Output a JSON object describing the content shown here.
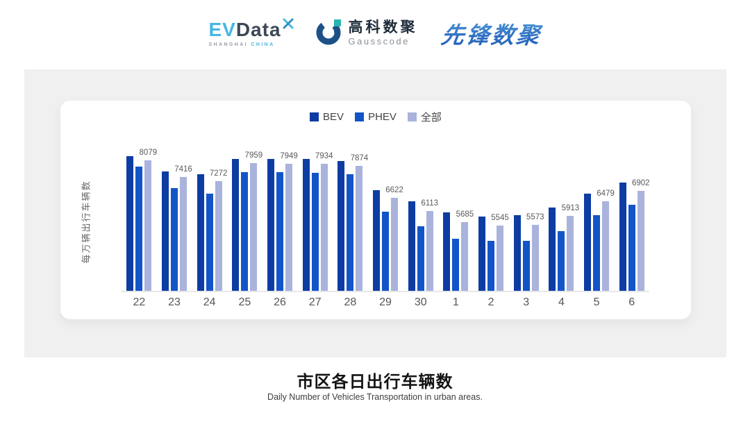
{
  "header": {
    "evdata": {
      "ev": "EV",
      "data": "Data",
      "sub_left": "SHANGHAI",
      "sub_right": "CHINA",
      "accent_color": "#45b7e3",
      "dark_color": "#3c4857"
    },
    "gausscode": {
      "cn": "高科数聚",
      "en": "Gausscode",
      "icon_dark": "#1d5186",
      "icon_teal": "#2bb3b1"
    },
    "xianfeng": {
      "text": "先锋数聚",
      "color": "#2f6fc2"
    }
  },
  "chart_data": {
    "type": "bar",
    "title": "市区各日出行车辆数",
    "subtitle": "Daily Number of Vehicles Transportation in urban areas.",
    "xlabel": "",
    "ylabel": "每万辆出行车辆数",
    "legend_position": "top",
    "grid": false,
    "axis_min": 3000,
    "axis_max": 8400,
    "categories": [
      "22",
      "23",
      "24",
      "25",
      "26",
      "27",
      "28",
      "29",
      "30",
      "1",
      "2",
      "3",
      "4",
      "5",
      "6"
    ],
    "series": [
      {
        "name": "BEV",
        "key": "bev",
        "color": "#0d3ca3",
        "values": [
          8240,
          7650,
          7540,
          8130,
          8130,
          8130,
          8040,
          6920,
          6480,
          6050,
          5900,
          5940,
          6250,
          6780,
          7200
        ]
      },
      {
        "name": "PHEV",
        "key": "phev",
        "color": "#1355c8",
        "values": [
          7830,
          7000,
          6770,
          7630,
          7610,
          7590,
          7550,
          6080,
          5510,
          5030,
          4950,
          4950,
          5330,
          5940,
          6350
        ]
      },
      {
        "name": "全部",
        "key": "all",
        "color": "#a9b3dc",
        "values": [
          8079,
          7416,
          7272,
          7959,
          7949,
          7934,
          7874,
          6622,
          6113,
          5685,
          5545,
          5573,
          5913,
          6479,
          6902
        ],
        "labels_shown": true
      }
    ]
  },
  "footer": {
    "title": "市区各日出行车辆数",
    "subtitle": "Daily Number of Vehicles Transportation in urban areas."
  }
}
